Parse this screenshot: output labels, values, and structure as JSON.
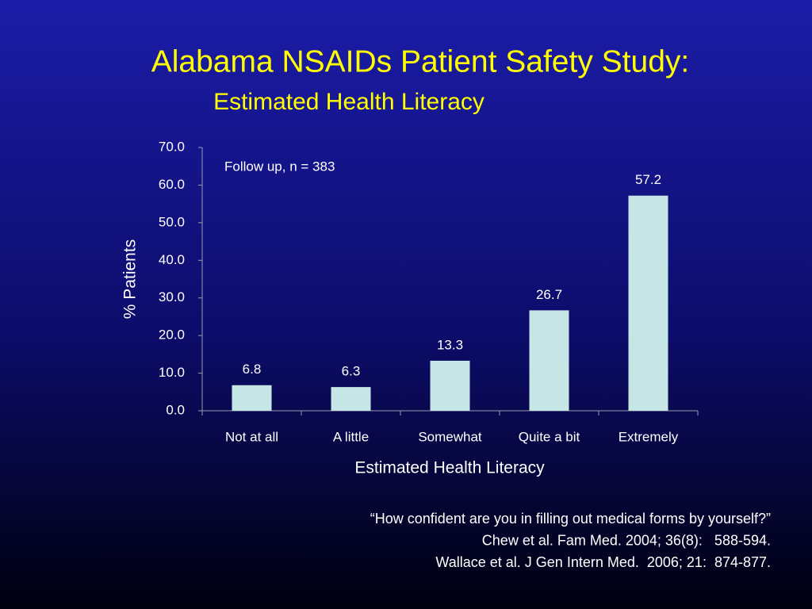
{
  "chart_data": {
    "type": "bar",
    "title": "Alabama NSAIDs Patient Safety Study:",
    "subtitle": "Estimated Health Literacy",
    "annotation": "Follow up, n = 383",
    "x_label": "Estimated Health Literacy",
    "y_label": "% Patients",
    "categories": [
      "Not at all",
      "A little",
      "Somewhat",
      "Quite a bit",
      "Extremely"
    ],
    "values": [
      6.8,
      6.3,
      13.3,
      26.7,
      57.2
    ],
    "color": "#c6e6e6",
    "ylim": [
      0,
      70
    ],
    "yticks": [
      {
        "value": 0,
        "label": "0.0"
      },
      {
        "value": 10,
        "label": "10.0"
      },
      {
        "value": 20,
        "label": "20.0"
      },
      {
        "value": 30,
        "label": "30.0"
      },
      {
        "value": 40,
        "label": "40.0"
      },
      {
        "value": 50,
        "label": "50.0"
      },
      {
        "value": 60,
        "label": "60.0"
      },
      {
        "value": 70,
        "label": "70.0"
      }
    ],
    "grid": false,
    "notes": [
      "“How confident are you in filling out medical forms by yourself?”",
      "Chew et al. Fam Med. 2004; 36(8):   588-594.",
      "Wallace et al. J Gen Intern Med.  2006; 21:  874-877."
    ]
  }
}
